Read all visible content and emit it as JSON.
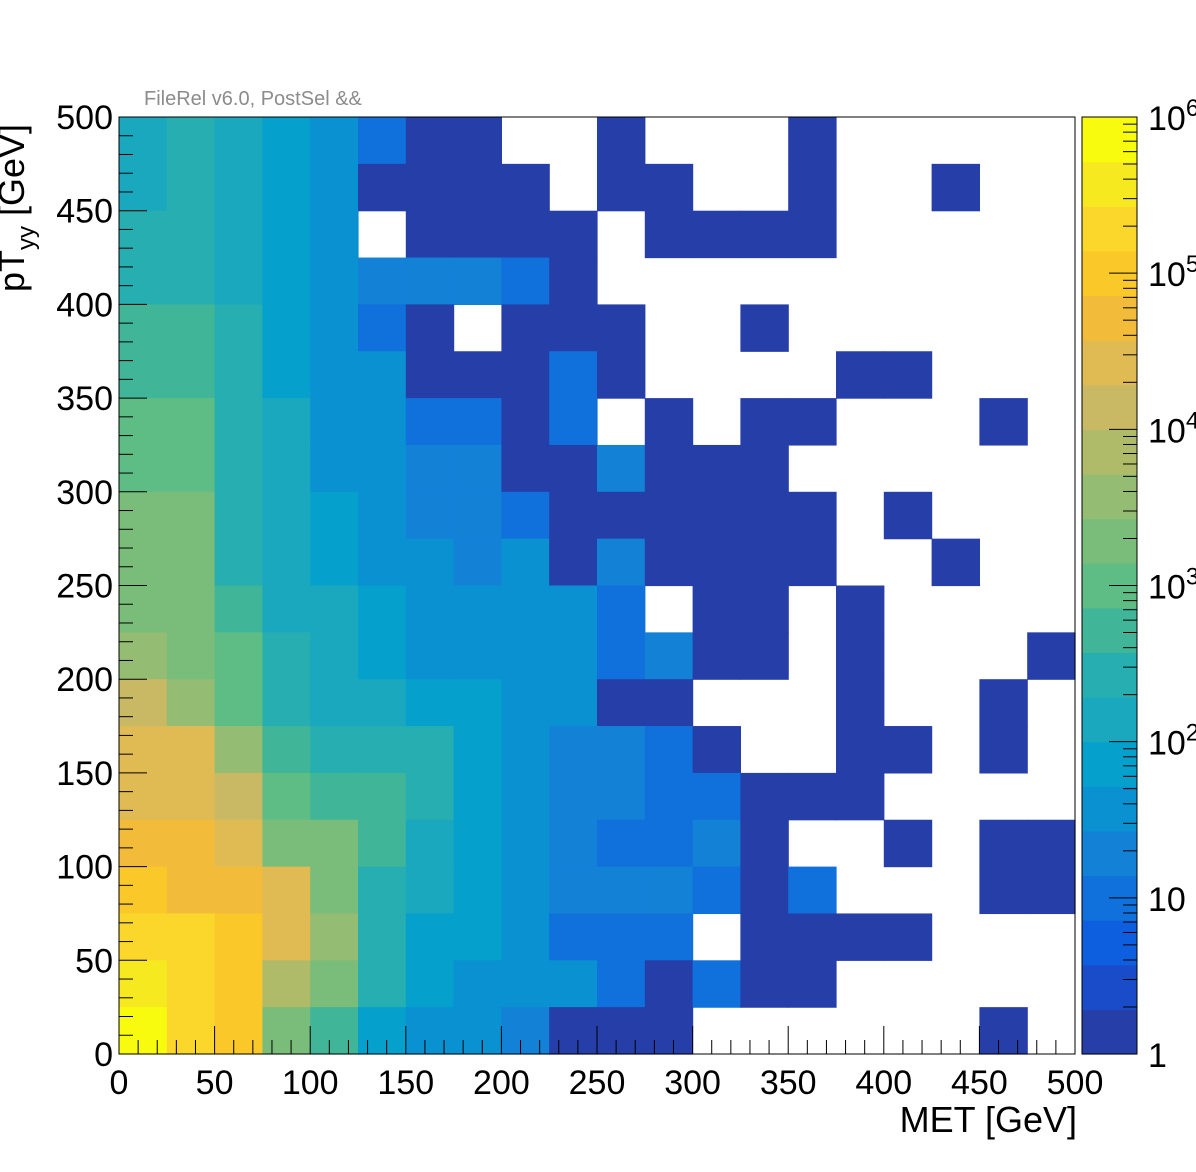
{
  "chart_data": {
    "type": "heatmap",
    "title": "",
    "annotation": "FileRel v6.0, PostSel &&",
    "xlabel": "MET [GeV]",
    "ylabel_main": "pT",
    "ylabel_sub": "yy",
    "ylabel_unit": " [GeV]",
    "xlim": [
      0,
      500
    ],
    "ylim": [
      0,
      500
    ],
    "x_ticks": [
      "0",
      "50",
      "100",
      "150",
      "200",
      "250",
      "300",
      "350",
      "400",
      "450",
      "500"
    ],
    "y_ticks": [
      "0",
      "50",
      "100",
      "150",
      "200",
      "250",
      "300",
      "350",
      "400",
      "450",
      "500"
    ],
    "bin_width": 25,
    "colorbar": {
      "scale": "log",
      "range": [
        1,
        1000000
      ],
      "labels": [
        "1",
        "10",
        "10",
        "10",
        "10",
        "10",
        "10"
      ],
      "exponents": [
        "",
        "",
        "2",
        "3",
        "4",
        "5",
        "6"
      ],
      "colors": [
        "#263ea8",
        "#1a4cc9",
        "#0d5fdf",
        "#1070dc",
        "#1381d6",
        "#0a91d1",
        "#06a0cc",
        "#1aa8bf",
        "#26aeb0",
        "#40b598",
        "#5ebd85",
        "#7abd7a",
        "#94bc72",
        "#b0bb6a",
        "#c9b964",
        "#e0bb54",
        "#f2bc3a",
        "#fbc82a",
        "#fad72a",
        "#f6e920",
        "#f9fb0e"
      ]
    },
    "x_bin_lows": [
      0,
      25,
      50,
      75,
      100,
      125,
      150,
      175,
      200,
      225,
      250,
      275,
      300,
      325,
      350,
      375,
      400,
      425,
      450,
      475
    ],
    "rows_top_to_bottom": [
      [
        2.1,
        2.4,
        2.0,
        1.8,
        1.6,
        1.1,
        0,
        0,
        -1,
        -1,
        0,
        -1,
        -1,
        -1,
        0,
        -1,
        -1,
        -1,
        -1,
        -1
      ],
      [
        2.1,
        2.4,
        2.0,
        1.8,
        1.6,
        0,
        0,
        0,
        0,
        -1,
        0,
        0,
        -1,
        -1,
        0,
        -1,
        -1,
        0,
        -1,
        -1
      ],
      [
        2.4,
        2.4,
        2.1,
        1.9,
        1.6,
        -1,
        0,
        0,
        0,
        0,
        -1,
        0,
        0,
        0,
        0,
        -1,
        -1,
        -1,
        -1,
        -1
      ],
      [
        2.4,
        2.4,
        2.1,
        1.9,
        1.6,
        1.4,
        1.2,
        1.2,
        1.1,
        0,
        -1,
        -1,
        -1,
        -1,
        -1,
        -1,
        -1,
        -1,
        -1,
        -1
      ],
      [
        2.6,
        2.6,
        2.3,
        1.9,
        1.6,
        1.1,
        0,
        -1,
        0,
        0,
        0,
        -1,
        -1,
        0,
        -1,
        -1,
        -1,
        -1,
        -1,
        -1
      ],
      [
        2.6,
        2.6,
        2.3,
        1.9,
        1.5,
        1.5,
        0,
        0,
        0,
        1.0,
        0,
        -1,
        -1,
        -1,
        -1,
        0,
        0,
        -1,
        -1,
        -1
      ],
      [
        2.9,
        2.9,
        2.3,
        2.0,
        1.7,
        1.5,
        1.1,
        1.1,
        0,
        1.0,
        -1,
        0,
        -1,
        0,
        0,
        -1,
        -1,
        -1,
        0,
        -1
      ],
      [
        2.9,
        2.9,
        2.3,
        2.0,
        1.7,
        1.5,
        1.3,
        1.3,
        0,
        0,
        1.2,
        0,
        0,
        0,
        -1,
        -1,
        -1,
        -1,
        -1,
        -1
      ],
      [
        3.2,
        3.2,
        2.5,
        2.2,
        1.9,
        1.7,
        1.3,
        1.3,
        1.1,
        0,
        0,
        0,
        0,
        0,
        0,
        -1,
        0,
        -1,
        -1,
        -1
      ],
      [
        3.2,
        3.2,
        2.5,
        2.2,
        1.9,
        1.7,
        1.5,
        1.2,
        1.7,
        0,
        1.3,
        0,
        0,
        0,
        0,
        -1,
        -1,
        0,
        -1,
        -1
      ],
      [
        3.4,
        3.4,
        2.7,
        2.2,
        2.0,
        1.8,
        1.5,
        1.5,
        1.5,
        1.5,
        1.0,
        -1,
        0,
        0,
        -1,
        0,
        -1,
        -1,
        -1,
        -1
      ],
      [
        3.7,
        3.4,
        3.1,
        2.3,
        2.1,
        1.9,
        1.7,
        1.7,
        1.7,
        1.6,
        1.0,
        1.2,
        0,
        0,
        -1,
        0,
        -1,
        -1,
        -1,
        0
      ],
      [
        4.0,
        3.6,
        3.1,
        2.4,
        2.2,
        2.0,
        1.8,
        1.8,
        1.6,
        1.5,
        0,
        0,
        -1,
        -1,
        -1,
        0,
        -1,
        -1,
        0,
        -1
      ],
      [
        4.3,
        4.3,
        3.5,
        2.8,
        2.4,
        2.3,
        2.3,
        1.9,
        1.5,
        1.4,
        1.4,
        1.1,
        0,
        -1,
        -1,
        0,
        0,
        -1,
        0,
        -1
      ],
      [
        4.5,
        4.3,
        4.0,
        3.1,
        2.7,
        2.7,
        2.4,
        1.9,
        1.5,
        1.4,
        1.4,
        1.1,
        1.1,
        0,
        0,
        0,
        -1,
        -1,
        -1,
        -1
      ],
      [
        4.7,
        4.6,
        4.3,
        3.2,
        3.2,
        2.7,
        2.0,
        1.8,
        1.5,
        1.3,
        1.0,
        1.0,
        1.3,
        0,
        -1,
        -1,
        0,
        -1,
        0,
        0
      ],
      [
        5.0,
        4.8,
        4.6,
        4.3,
        3.3,
        2.5,
        2.0,
        1.8,
        1.5,
        1.3,
        1.3,
        1.3,
        1.0,
        0,
        1.0,
        -1,
        -1,
        -1,
        0,
        0
      ],
      [
        5.3,
        5.2,
        4.9,
        4.3,
        3.5,
        2.4,
        1.9,
        1.8,
        1.5,
        1.0,
        1.0,
        1.0,
        -1,
        0,
        0,
        0,
        0,
        -1,
        -1,
        -1
      ],
      [
        5.5,
        5.3,
        5.0,
        3.8,
        3.2,
        2.4,
        1.9,
        1.5,
        1.5,
        1.5,
        1.0,
        0,
        1.0,
        0,
        0,
        -1,
        -1,
        -1,
        -1,
        -1
      ],
      [
        5.8,
        5.4,
        4.9,
        3.4,
        2.6,
        1.8,
        1.5,
        1.5,
        1.3,
        0,
        0,
        0,
        -1,
        -1,
        -1,
        -1,
        -1,
        -1,
        0,
        -1
      ]
    ]
  }
}
